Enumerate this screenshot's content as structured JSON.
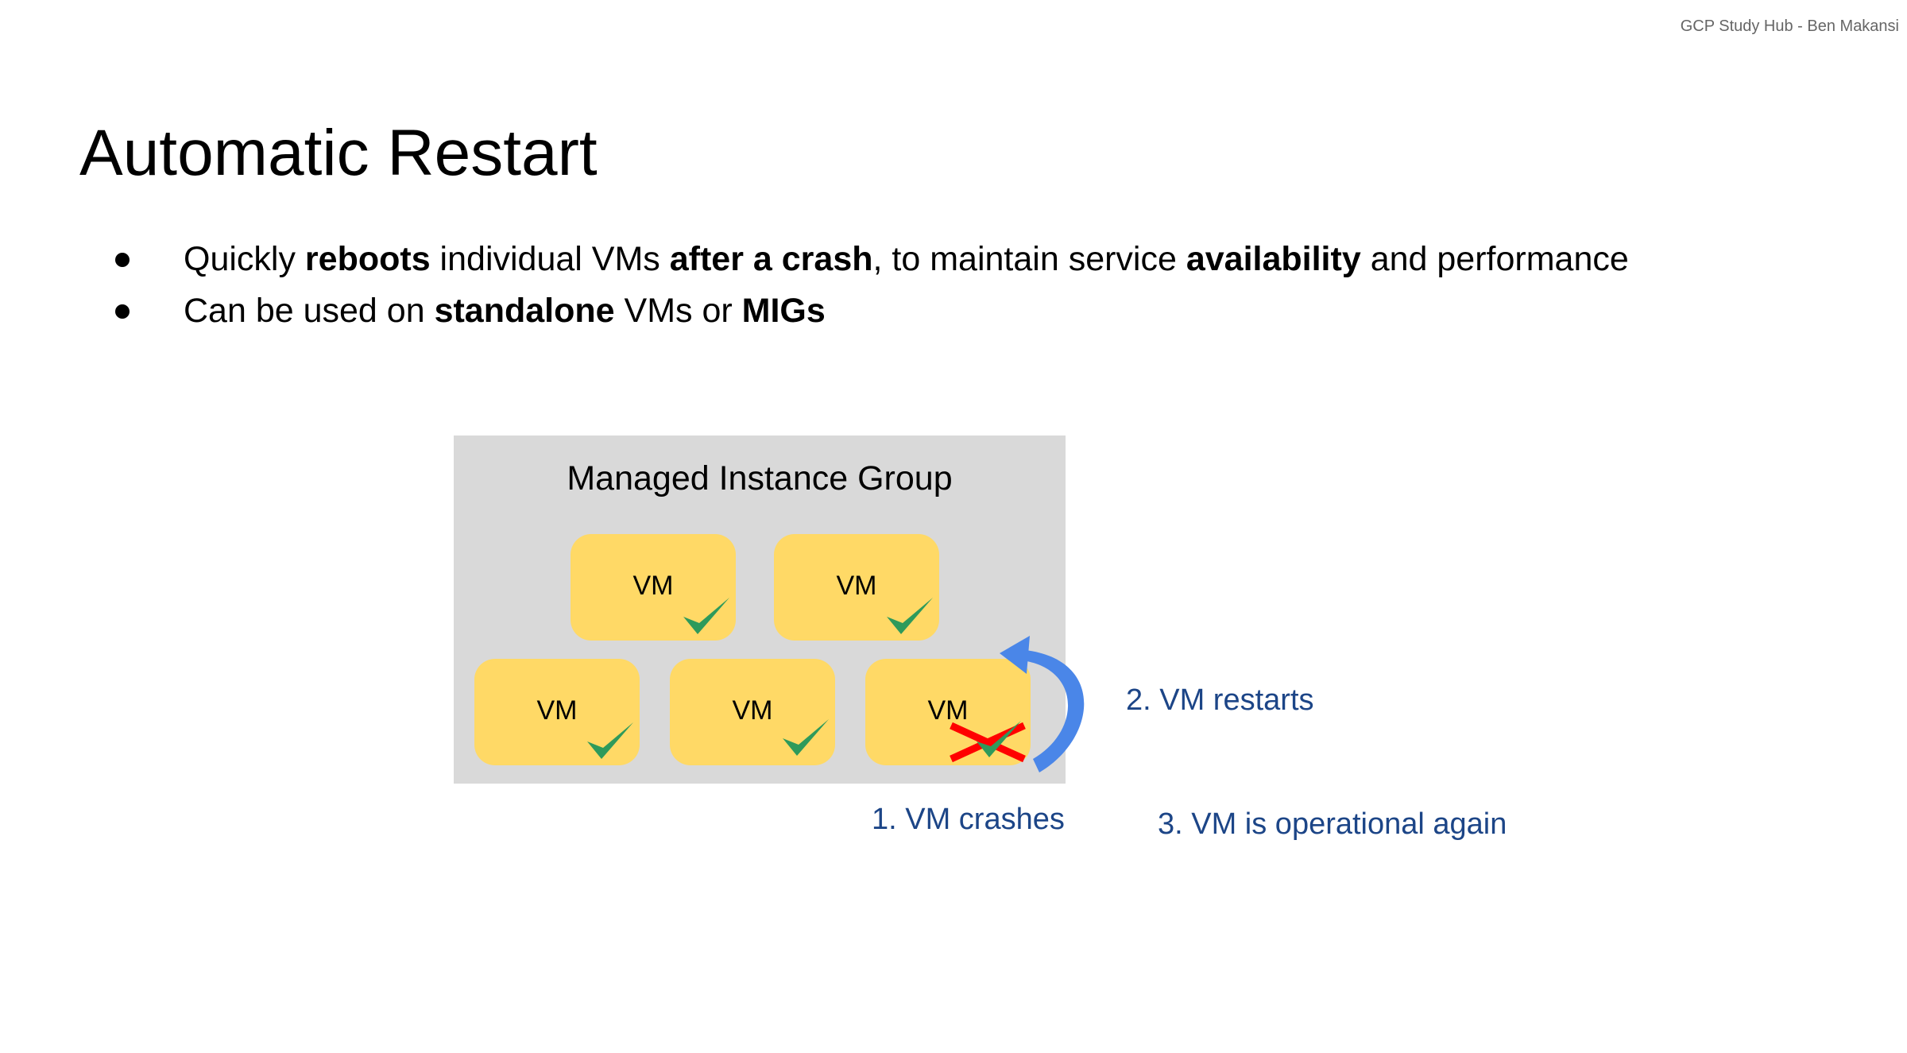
{
  "footer": "GCP Study Hub - Ben Makansi",
  "title": "Automatic Restart",
  "bullets": [
    {
      "parts": [
        "Quickly ",
        "reboots",
        " individual VMs ",
        "after a crash",
        ", to maintain service ",
        "availability",
        " and performance"
      ]
    },
    {
      "parts": [
        "Can be used on ",
        "standalone",
        " VMs or ",
        "MIGs"
      ]
    }
  ],
  "diagram": {
    "group_title": "Managed Instance Group",
    "vms": [
      {
        "label": "VM",
        "status": "ok"
      },
      {
        "label": "VM",
        "status": "ok"
      },
      {
        "label": "VM",
        "status": "ok"
      },
      {
        "label": "VM",
        "status": "ok"
      },
      {
        "label": "VM",
        "status": "crashed-restarted"
      }
    ],
    "steps": [
      "1. VM crashes",
      "2. VM restarts",
      "3. VM is operational again"
    ],
    "colors": {
      "vm": "#ffd966",
      "group": "#d9d9d9",
      "check": "#2e9a5b",
      "cross": "#ff0000",
      "arrow": "#4a86e8",
      "step_text": "#1c4587"
    }
  }
}
